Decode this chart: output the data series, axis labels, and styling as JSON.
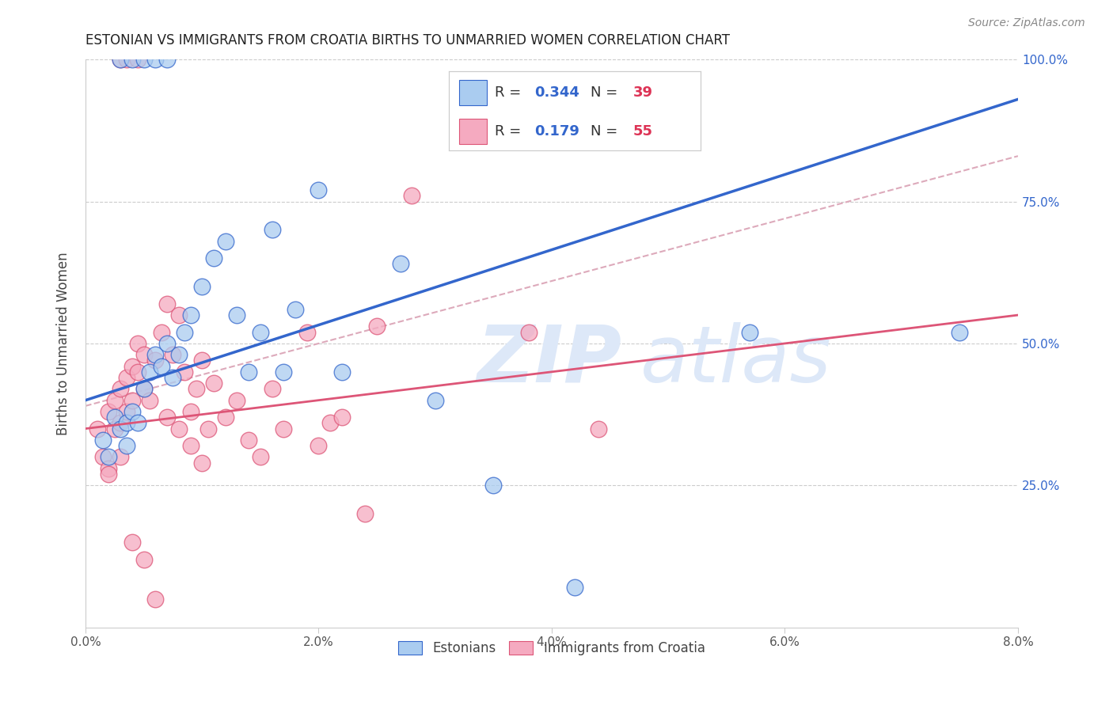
{
  "title": "ESTONIAN VS IMMIGRANTS FROM CROATIA BIRTHS TO UNMARRIED WOMEN CORRELATION CHART",
  "source": "Source: ZipAtlas.com",
  "xlabel_ticks": [
    "0.0%",
    "2.0%",
    "4.0%",
    "6.0%",
    "8.0%"
  ],
  "xlabel_vals": [
    0.0,
    2.0,
    4.0,
    6.0,
    8.0
  ],
  "ylabel_ticks": [
    "100.0%",
    "75.0%",
    "50.0%",
    "25.0%"
  ],
  "ylabel_vals": [
    100.0,
    75.0,
    50.0,
    25.0
  ],
  "ylabel_label": "Births to Unmarried Women",
  "legend_label1": "Estonians",
  "legend_label2": "Immigrants from Croatia",
  "R1": "0.344",
  "N1": "39",
  "R2": "0.179",
  "N2": "55",
  "color_blue": "#aaccf0",
  "color_pink": "#f5aac0",
  "color_blue_line": "#3366cc",
  "color_pink_line": "#dd5577",
  "color_dashed": "#ddaabb",
  "blue_scatter_x": [
    0.15,
    0.2,
    0.25,
    0.3,
    0.35,
    0.35,
    0.4,
    0.45,
    0.5,
    0.55,
    0.6,
    0.65,
    0.7,
    0.75,
    0.8,
    0.85,
    0.9,
    1.0,
    1.1,
    1.2,
    1.3,
    1.4,
    1.5,
    1.6,
    1.7,
    1.8,
    2.0,
    2.2,
    2.7,
    3.0,
    5.7,
    7.5,
    0.3,
    0.4,
    0.5,
    0.6,
    0.7,
    3.5,
    4.2
  ],
  "blue_scatter_y": [
    33,
    30,
    37,
    35,
    36,
    32,
    38,
    36,
    42,
    45,
    48,
    46,
    50,
    44,
    48,
    52,
    55,
    60,
    65,
    68,
    55,
    45,
    52,
    70,
    45,
    56,
    77,
    45,
    64,
    40,
    52,
    52,
    100,
    100,
    100,
    100,
    100,
    25,
    7
  ],
  "pink_scatter_x": [
    0.1,
    0.15,
    0.2,
    0.2,
    0.25,
    0.25,
    0.3,
    0.3,
    0.35,
    0.35,
    0.4,
    0.4,
    0.45,
    0.45,
    0.5,
    0.5,
    0.55,
    0.6,
    0.65,
    0.7,
    0.75,
    0.8,
    0.85,
    0.9,
    0.95,
    1.0,
    1.05,
    1.1,
    1.2,
    1.3,
    1.4,
    1.5,
    1.6,
    1.7,
    1.9,
    2.0,
    2.1,
    2.2,
    2.4,
    0.2,
    0.3,
    0.4,
    0.5,
    0.6,
    0.7,
    0.8,
    0.9,
    1.0,
    0.3,
    0.35,
    0.45,
    2.5,
    4.4,
    3.8,
    2.8
  ],
  "pink_scatter_y": [
    35,
    30,
    38,
    28,
    35,
    40,
    42,
    36,
    44,
    38,
    46,
    40,
    45,
    50,
    48,
    42,
    40,
    47,
    52,
    57,
    48,
    55,
    45,
    38,
    42,
    47,
    35,
    43,
    37,
    40,
    33,
    30,
    42,
    35,
    52,
    32,
    36,
    37,
    20,
    27,
    30,
    15,
    12,
    5,
    37,
    35,
    32,
    29,
    100,
    100,
    100,
    53,
    35,
    52,
    76
  ],
  "xlim": [
    0.0,
    8.0
  ],
  "ylim": [
    0.0,
    100.0
  ],
  "watermark_zip": "ZIP",
  "watermark_atlas": "atlas",
  "watermark_color": "#dde8f8",
  "blue_line_x0": 0.0,
  "blue_line_y0": 40.0,
  "blue_line_x1": 8.0,
  "blue_line_y1": 93.0,
  "pink_line_x0": 0.0,
  "pink_line_y0": 35.0,
  "pink_line_x1": 8.0,
  "pink_line_y1": 55.0,
  "dashed_line_x0": 0.0,
  "dashed_line_y0": 39.0,
  "dashed_line_x1": 8.0,
  "dashed_line_y1": 83.0
}
